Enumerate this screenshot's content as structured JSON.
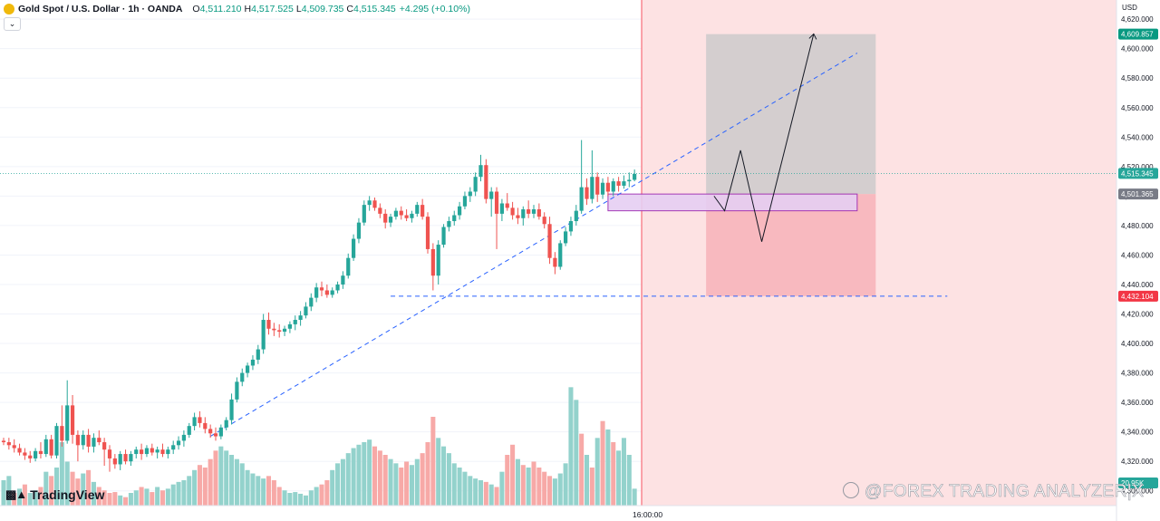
{
  "header": {
    "symbol": "Gold Spot / U.S. Dollar · 1h · OANDA",
    "open_key": "O",
    "open": "4,511.210",
    "high_key": "H",
    "high": "4,517.525",
    "low_key": "L",
    "low": "4,509.735",
    "close_key": "C",
    "close": "4,515.345",
    "change": "+4.295 (+0.10%)",
    "collapse_icon": "chevron-down-icon"
  },
  "currency": "USD",
  "time_label": "16:00:00",
  "logo_text": "TradingView",
  "watermark": "@FOREX TRADING ANALYZER¦X",
  "price_badges": {
    "target": "4,609.857",
    "current": "4,515.345",
    "entry": "4,501.365",
    "stop": "4,432.104",
    "volume": "20.95K"
  },
  "colors": {
    "up": "#26a69a",
    "down": "#ef5350",
    "vol_up": "#93d2cc",
    "vol_down": "#f7a9a7",
    "accent_blue": "#2962ff",
    "target_badge": "#089981",
    "stop_badge": "#f23645"
  },
  "chart_data": {
    "type": "candlestick",
    "timeframe": "1h",
    "y_axis_ticks": [
      "4,620.000",
      "4,600.000",
      "4,580.000",
      "4,560.000",
      "4,540.000",
      "4,520.000",
      "4,500.000",
      "4,480.000",
      "4,460.000",
      "4,440.000",
      "4,420.000",
      "4,400.000",
      "4,380.000",
      "4,360.000",
      "4,340.000",
      "4,320.000",
      "4,300.000"
    ],
    "y_axis_values": [
      4620,
      4600,
      4580,
      4560,
      4540,
      4520,
      4500,
      4480,
      4460,
      4440,
      4420,
      4400,
      4380,
      4360,
      4340,
      4320,
      4300
    ],
    "ylim": [
      4290,
      4633
    ],
    "x_labels": [
      "16:00:00"
    ],
    "bar_count": 120,
    "candles": [
      [
        4334,
        4336,
        4331,
        4333
      ],
      [
        4333,
        4336,
        4328,
        4331
      ],
      [
        4331,
        4335,
        4326,
        4329
      ],
      [
        4329,
        4332,
        4324,
        4326
      ],
      [
        4326,
        4329,
        4321,
        4324
      ],
      [
        4324,
        4327,
        4319,
        4322
      ],
      [
        4322,
        4329,
        4320,
        4327
      ],
      [
        4327,
        4333,
        4322,
        4325
      ],
      [
        4325,
        4338,
        4323,
        4335
      ],
      [
        4335,
        4338,
        4322,
        4324
      ],
      [
        4324,
        4346,
        4322,
        4344
      ],
      [
        4344,
        4358,
        4330,
        4334
      ],
      [
        4334,
        4375,
        4332,
        4358
      ],
      [
        4358,
        4365,
        4332,
        4338
      ],
      [
        4338,
        4341,
        4320,
        4331
      ],
      [
        4331,
        4341,
        4328,
        4338
      ],
      [
        4338,
        4342,
        4326,
        4330
      ],
      [
        4330,
        4339,
        4326,
        4336
      ],
      [
        4336,
        4341,
        4331,
        4333
      ],
      [
        4333,
        4336,
        4317,
        4328
      ],
      [
        4328,
        4331,
        4313,
        4322
      ],
      [
        4322,
        4325,
        4315,
        4318
      ],
      [
        4318,
        4327,
        4314,
        4325
      ],
      [
        4325,
        4328,
        4318,
        4320
      ],
      [
        4320,
        4327,
        4317,
        4325
      ],
      [
        4325,
        4330,
        4322,
        4328
      ],
      [
        4328,
        4332,
        4321,
        4325
      ],
      [
        4325,
        4331,
        4323,
        4329
      ],
      [
        4329,
        4332,
        4324,
        4326
      ],
      [
        4326,
        4330,
        4322,
        4328
      ],
      [
        4328,
        4332,
        4323,
        4325
      ],
      [
        4325,
        4330,
        4322,
        4328
      ],
      [
        4328,
        4334,
        4325,
        4331
      ],
      [
        4331,
        4337,
        4328,
        4334
      ],
      [
        4334,
        4341,
        4330,
        4338
      ],
      [
        4338,
        4346,
        4336,
        4344
      ],
      [
        4344,
        4353,
        4341,
        4350
      ],
      [
        4350,
        4354,
        4343,
        4346
      ],
      [
        4346,
        4350,
        4339,
        4342
      ],
      [
        4342,
        4345,
        4336,
        4339
      ],
      [
        4339,
        4343,
        4334,
        4337
      ],
      [
        4337,
        4345,
        4335,
        4343
      ],
      [
        4343,
        4350,
        4341,
        4348
      ],
      [
        4348,
        4366,
        4345,
        4362
      ],
      [
        4362,
        4377,
        4360,
        4374
      ],
      [
        4374,
        4383,
        4371,
        4380
      ],
      [
        4380,
        4387,
        4377,
        4385
      ],
      [
        4385,
        4392,
        4382,
        4389
      ],
      [
        4389,
        4399,
        4386,
        4396
      ],
      [
        4396,
        4420,
        4393,
        4416
      ],
      [
        4416,
        4421,
        4406,
        4410
      ],
      [
        4410,
        4414,
        4405,
        4409
      ],
      [
        4409,
        4413,
        4404,
        4408
      ],
      [
        4408,
        4412,
        4405,
        4410
      ],
      [
        4410,
        4415,
        4407,
        4413
      ],
      [
        4413,
        4419,
        4409,
        4416
      ],
      [
        4416,
        4422,
        4412,
        4419
      ],
      [
        4419,
        4428,
        4417,
        4425
      ],
      [
        4425,
        4434,
        4422,
        4431
      ],
      [
        4431,
        4441,
        4428,
        4438
      ],
      [
        4438,
        4442,
        4432,
        4436
      ],
      [
        4436,
        4440,
        4431,
        4433
      ],
      [
        4433,
        4438,
        4431,
        4436
      ],
      [
        4436,
        4442,
        4434,
        4440
      ],
      [
        4440,
        4449,
        4437,
        4446
      ],
      [
        4446,
        4461,
        4444,
        4458
      ],
      [
        4458,
        4474,
        4456,
        4471
      ],
      [
        4471,
        4485,
        4468,
        4482
      ],
      [
        4482,
        4497,
        4480,
        4494
      ],
      [
        4494,
        4500,
        4490,
        4497
      ],
      [
        4497,
        4499,
        4490,
        4492
      ],
      [
        4492,
        4495,
        4485,
        4488
      ],
      [
        4488,
        4491,
        4478,
        4482
      ],
      [
        4482,
        4488,
        4479,
        4486
      ],
      [
        4486,
        4492,
        4484,
        4490
      ],
      [
        4490,
        4493,
        4484,
        4487
      ],
      [
        4487,
        4491,
        4483,
        4485
      ],
      [
        4485,
        4490,
        4482,
        4488
      ],
      [
        4488,
        4496,
        4486,
        4494
      ],
      [
        4494,
        4498,
        4484,
        4486
      ],
      [
        4486,
        4489,
        4461,
        4464
      ],
      [
        4464,
        4468,
        4436,
        4446
      ],
      [
        4446,
        4470,
        4440,
        4467
      ],
      [
        4467,
        4481,
        4465,
        4479
      ],
      [
        4479,
        4486,
        4476,
        4483
      ],
      [
        4483,
        4490,
        4480,
        4487
      ],
      [
        4487,
        4496,
        4484,
        4493
      ],
      [
        4493,
        4503,
        4491,
        4500
      ],
      [
        4500,
        4506,
        4496,
        4503
      ],
      [
        4503,
        4516,
        4500,
        4513
      ],
      [
        4513,
        4528,
        4510,
        4521
      ],
      [
        4521,
        4525,
        4495,
        4498
      ],
      [
        4498,
        4506,
        4486,
        4503
      ],
      [
        4503,
        4506,
        4464,
        4488
      ],
      [
        4488,
        4498,
        4483,
        4495
      ],
      [
        4495,
        4502,
        4490,
        4492
      ],
      [
        4492,
        4496,
        4484,
        4487
      ],
      [
        4487,
        4492,
        4481,
        4485
      ],
      [
        4485,
        4493,
        4480,
        4491
      ],
      [
        4491,
        4497,
        4485,
        4488
      ],
      [
        4488,
        4494,
        4485,
        4491
      ],
      [
        4491,
        4495,
        4484,
        4486
      ],
      [
        4486,
        4489,
        4478,
        4481
      ],
      [
        4481,
        4486,
        4454,
        4458
      ],
      [
        4458,
        4462,
        4447,
        4452
      ],
      [
        4452,
        4470,
        4450,
        4468
      ],
      [
        4468,
        4479,
        4466,
        4476
      ],
      [
        4476,
        4486,
        4473,
        4483
      ],
      [
        4483,
        4494,
        4480,
        4490
      ],
      [
        4490,
        4538,
        4488,
        4506
      ],
      [
        4506,
        4512,
        4494,
        4498
      ],
      [
        4498,
        4531,
        4495,
        4513
      ],
      [
        4513,
        4516,
        4496,
        4501
      ],
      [
        4501,
        4512,
        4498,
        4509
      ],
      [
        4509,
        4513,
        4500,
        4503
      ],
      [
        4503,
        4512,
        4500,
        4510
      ],
      [
        4510,
        4513,
        4503,
        4507
      ],
      [
        4507,
        4514,
        4505,
        4510
      ],
      [
        4510,
        4516,
        4506,
        4511
      ],
      [
        4511,
        4518,
        4510,
        4515
      ]
    ],
    "volume_max": 150000,
    "volumes": [
      30000,
      35000,
      15000,
      20000,
      25000,
      15000,
      18000,
      22000,
      40000,
      35000,
      45000,
      75000,
      52000,
      40000,
      32000,
      38000,
      42000,
      28000,
      22000,
      18000,
      15000,
      16000,
      12000,
      10000,
      15000,
      18000,
      22000,
      20000,
      16000,
      22000,
      18000,
      20000,
      25000,
      28000,
      30000,
      35000,
      42000,
      48000,
      45000,
      55000,
      65000,
      70000,
      65000,
      60000,
      55000,
      50000,
      42000,
      38000,
      35000,
      32000,
      35000,
      30000,
      22000,
      18000,
      15000,
      16000,
      14000,
      12000,
      18000,
      22000,
      25000,
      30000,
      42000,
      50000,
      55000,
      62000,
      68000,
      72000,
      75000,
      78000,
      70000,
      65000,
      60000,
      55000,
      50000,
      45000,
      52000,
      48000,
      55000,
      62000,
      75000,
      105000,
      80000,
      70000,
      62000,
      50000,
      45000,
      40000,
      35000,
      32000,
      30000,
      28000,
      25000,
      22000,
      40000,
      60000,
      72000,
      55000,
      48000,
      45000,
      52000,
      45000,
      40000,
      35000,
      32000,
      38000,
      50000,
      140000,
      125000,
      85000,
      60000,
      45000,
      80000,
      100000,
      90000,
      75000,
      65000,
      80000,
      60000,
      20000
    ],
    "volume_directions": [
      "up",
      "up",
      "down",
      "up",
      "down",
      "up",
      "up",
      "down",
      "up",
      "down",
      "up",
      "up",
      "up",
      "down",
      "down",
      "up",
      "down",
      "up",
      "down",
      "down",
      "down",
      "down",
      "up",
      "down",
      "up",
      "up",
      "down",
      "up",
      "down",
      "up",
      "down",
      "up",
      "up",
      "up",
      "up",
      "up",
      "up",
      "down",
      "down",
      "down",
      "down",
      "up",
      "up",
      "up",
      "up",
      "up",
      "up",
      "up",
      "up",
      "up",
      "down",
      "down",
      "down",
      "up",
      "up",
      "up",
      "up",
      "up",
      "up",
      "up",
      "down",
      "down",
      "up",
      "up",
      "up",
      "up",
      "up",
      "up",
      "up",
      "up",
      "down",
      "down",
      "down",
      "up",
      "up",
      "down",
      "down",
      "up",
      "up",
      "down",
      "down",
      "down",
      "up",
      "up",
      "up",
      "up",
      "up",
      "up",
      "up",
      "up",
      "up",
      "down",
      "up",
      "down",
      "up",
      "down",
      "down",
      "up",
      "down",
      "up",
      "down",
      "down",
      "down",
      "down",
      "up",
      "up",
      "up",
      "up",
      "up",
      "down",
      "up",
      "down",
      "up",
      "down",
      "up",
      "down",
      "up",
      "up",
      "up",
      "up"
    ],
    "forecast_start_time": "16:00:00",
    "levels": {
      "target": 4609.857,
      "entry": 4501.365,
      "stop": 4432.104,
      "current": 4515.345
    },
    "entry_zone": [
      4490,
      4501.365
    ],
    "trendline": {
      "from_bar": 39,
      "from_price": 4337,
      "through_bar": 82,
      "through_price": 4432.104,
      "end_price": 4597
    },
    "support_line": 4432.104,
    "projected_path": [
      4500,
      4490,
      4531,
      4469,
      4610
    ],
    "grid": true,
    "legend": "none"
  }
}
